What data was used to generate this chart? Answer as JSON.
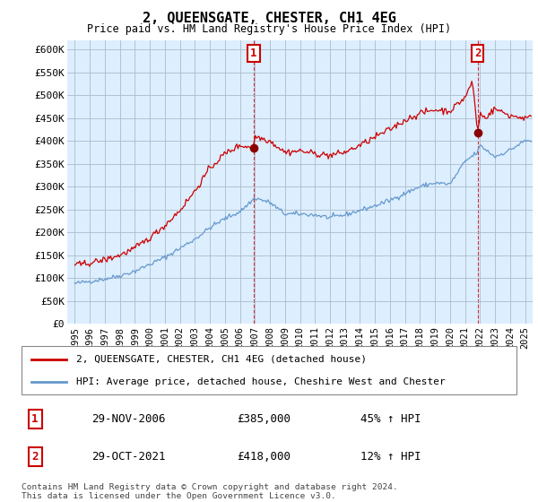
{
  "title": "2, QUEENSGATE, CHESTER, CH1 4EG",
  "subtitle": "Price paid vs. HM Land Registry's House Price Index (HPI)",
  "ylabel_ticks": [
    "£0",
    "£50K",
    "£100K",
    "£150K",
    "£200K",
    "£250K",
    "£300K",
    "£350K",
    "£400K",
    "£450K",
    "£500K",
    "£550K",
    "£600K"
  ],
  "ytick_vals": [
    0,
    50000,
    100000,
    150000,
    200000,
    250000,
    300000,
    350000,
    400000,
    450000,
    500000,
    550000,
    600000
  ],
  "ylim": [
    0,
    620000
  ],
  "xlim_start": 1994.5,
  "xlim_end": 2025.5,
  "sale1_date": 2006.91,
  "sale1_price": 385000,
  "sale1_label": "1",
  "sale2_date": 2021.83,
  "sale2_price": 418000,
  "sale2_label": "2",
  "legend_property": "2, QUEENSGATE, CHESTER, CH1 4EG (detached house)",
  "legend_hpi": "HPI: Average price, detached house, Cheshire West and Chester",
  "annotation1_date": "29-NOV-2006",
  "annotation1_price": "£385,000",
  "annotation1_pct": "45% ↑ HPI",
  "annotation2_date": "29-OCT-2021",
  "annotation2_price": "£418,000",
  "annotation2_pct": "12% ↑ HPI",
  "footer": "Contains HM Land Registry data © Crown copyright and database right 2024.\nThis data is licensed under the Open Government Licence v3.0.",
  "hpi_color": "#6699cc",
  "price_color": "#cc0000",
  "background_color": "#ffffff",
  "chart_bg_color": "#ddeeff",
  "grid_color": "#aabbcc"
}
